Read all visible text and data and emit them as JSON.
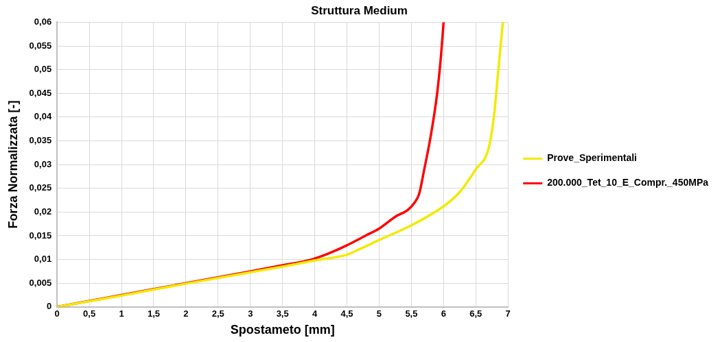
{
  "chart_data": {
    "type": "line",
    "title": "Struttura Medium",
    "xlabel": "Spostameto [mm]",
    "ylabel": "Forza Normalizzata [-]",
    "xlim": [
      0,
      7
    ],
    "xticks": [
      0,
      {
        "value": 0.5,
        "label": "0,5"
      },
      1,
      {
        "value": 1.5,
        "label": "1,5"
      },
      2,
      {
        "value": 2.5,
        "label": "2,5"
      },
      3,
      {
        "value": 3.5,
        "label": "3,5"
      },
      4,
      {
        "value": 4.5,
        "label": "4,5"
      },
      5,
      {
        "value": 5.5,
        "label": "5,5"
      },
      6,
      {
        "value": 6.5,
        "label": "6,5"
      },
      7
    ],
    "ylim": [
      0,
      0.06
    ],
    "yticks": [
      0,
      {
        "value": 0.005,
        "label": "0,005"
      },
      {
        "value": 0.01,
        "label": "0,01"
      },
      {
        "value": 0.015,
        "label": "0,015"
      },
      {
        "value": 0.02,
        "label": "0,02"
      },
      {
        "value": 0.025,
        "label": "0,025"
      },
      {
        "value": 0.03,
        "label": "0,03"
      },
      {
        "value": 0.035,
        "label": "0,035"
      },
      {
        "value": 0.04,
        "label": "0,04"
      },
      {
        "value": 0.045,
        "label": "0,045"
      },
      {
        "value": 0.05,
        "label": "0,05"
      },
      {
        "value": 0.055,
        "label": "0,055"
      },
      {
        "value": 0.06,
        "label": "0,06"
      }
    ],
    "grid": true,
    "legend": "right",
    "marker": "none",
    "line_style": "solid",
    "series": [
      {
        "name": "Prove_Sperimentali",
        "color": "#f2ea00",
        "x": [
          0,
          1,
          2,
          3,
          3.5,
          4,
          4.5,
          4.7,
          5,
          5.5,
          6,
          6.25,
          6.5,
          6.7,
          6.78,
          6.85,
          6.92
        ],
        "values": [
          0,
          0.0024,
          0.0049,
          0.0073,
          0.0085,
          0.0098,
          0.011,
          0.0122,
          0.0141,
          0.0172,
          0.0212,
          0.0242,
          0.029,
          0.0335,
          0.04,
          0.05,
          0.06
        ]
      },
      {
        "name": "200.000_Tet_10_E_Compr._450MPa",
        "color": "#ff0000",
        "x": [
          0,
          1,
          2,
          3,
          3.5,
          3.9,
          4.2,
          4.5,
          4.8,
          5,
          5.25,
          5.45,
          5.55,
          5.62,
          5.7,
          5.8,
          5.9,
          5.96,
          6
        ],
        "values": [
          0,
          0.0025,
          0.005,
          0.0075,
          0.0088,
          0.0098,
          0.0112,
          0.013,
          0.0151,
          0.0165,
          0.019,
          0.0205,
          0.022,
          0.0238,
          0.029,
          0.036,
          0.045,
          0.053,
          0.06
        ]
      }
    ]
  }
}
